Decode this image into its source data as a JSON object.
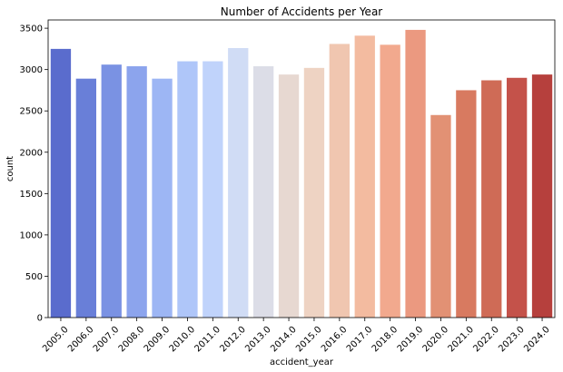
{
  "chart_data": {
    "type": "bar",
    "title": "Number of Accidents per Year",
    "xlabel": "accident_year",
    "ylabel": "count",
    "categories": [
      "2005.0",
      "2006.0",
      "2007.0",
      "2008.0",
      "2009.0",
      "2010.0",
      "2011.0",
      "2012.0",
      "2013.0",
      "2014.0",
      "2015.0",
      "2016.0",
      "2017.0",
      "2018.0",
      "2019.0",
      "2020.0",
      "2021.0",
      "2022.0",
      "2023.0",
      "2024.0"
    ],
    "values": [
      3250,
      2890,
      3060,
      3040,
      2890,
      3100,
      3100,
      3260,
      3040,
      2940,
      3020,
      3310,
      3410,
      3300,
      3480,
      2450,
      2750,
      2870,
      2900,
      2940
    ],
    "ylim": [
      0,
      3600
    ],
    "yticks": [
      0,
      500,
      1000,
      1500,
      2000,
      2500,
      3000,
      3500
    ],
    "colors": [
      "#5a6ccd",
      "#697fd8",
      "#7a92e3",
      "#8ca4ed",
      "#9db6f4",
      "#afc6f9",
      "#c0d3fb",
      "#d0dcf5",
      "#dcdde7",
      "#e7d8d1",
      "#eed3c3",
      "#f0c6b0",
      "#f3bba0",
      "#f2a98e",
      "#eb9980",
      "#e29174",
      "#d87a60",
      "#cf6b56",
      "#c4524a",
      "#b6403d"
    ]
  }
}
